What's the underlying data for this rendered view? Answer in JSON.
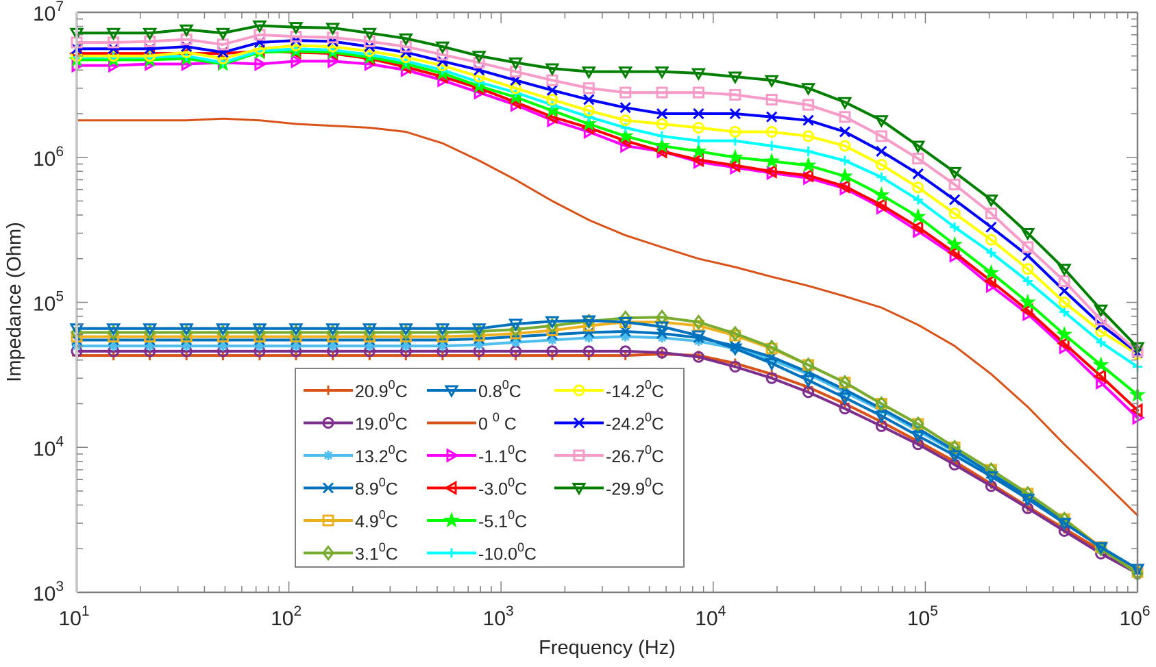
{
  "chart_data": {
    "type": "line",
    "title": "",
    "xlabel": "Frequency (Hz)",
    "ylabel": "Impedance (Ohm)",
    "xscale": "log",
    "yscale": "log",
    "xlim": [
      10,
      1000000
    ],
    "ylim": [
      1000,
      10000000
    ],
    "x_ticks": [
      {
        "base": "10",
        "exp": "1",
        "value": 10
      },
      {
        "base": "10",
        "exp": "2",
        "value": 100
      },
      {
        "base": "10",
        "exp": "3",
        "value": 1000
      },
      {
        "base": "10",
        "exp": "4",
        "value": 10000
      },
      {
        "base": "10",
        "exp": "5",
        "value": 100000
      },
      {
        "base": "10",
        "exp": "6",
        "value": 1000000
      }
    ],
    "y_ticks": [
      {
        "base": "10",
        "exp": "3",
        "value": 1000
      },
      {
        "base": "10",
        "exp": "4",
        "value": 10000
      },
      {
        "base": "10",
        "exp": "5",
        "value": 100000
      },
      {
        "base": "10",
        "exp": "6",
        "value": 1000000
      },
      {
        "base": "10",
        "exp": "7",
        "value": 10000000
      }
    ],
    "grid": false,
    "legend_position": "lower-left-center",
    "legend_columns": 3,
    "x": [
      10,
      14.9,
      22.1,
      32.9,
      48.9,
      72.8,
      108,
      161,
      240,
      356,
      530,
      788,
      1172,
      1743,
      2593,
      3857,
      5736,
      8532,
      12690,
      18874,
      28072,
      41753,
      62102,
      92367,
      137382,
      204336,
      303920,
      452035,
      672336,
      1000000
    ],
    "series": [
      {
        "name": "20.9",
        "unit": "C",
        "color": "#D95319",
        "marker": "plus",
        "values": [
          43000,
          43000,
          43000,
          43000,
          43000,
          43000,
          43000,
          43000,
          43000,
          43000,
          43000,
          43000,
          43000,
          43000,
          43000,
          43000,
          44000,
          43000,
          38000,
          32000,
          26000,
          20000,
          15000,
          11000,
          8000,
          5600,
          3900,
          2750,
          1950,
          1450
        ]
      },
      {
        "name": "19.0",
        "unit": "C",
        "color": "#7E2F8E",
        "marker": "circle",
        "values": [
          46000,
          46000,
          46000,
          46000,
          46000,
          46000,
          46000,
          46000,
          46000,
          46000,
          46000,
          46000,
          46000,
          46000,
          46000,
          46000,
          45000,
          42000,
          36000,
          30000,
          24000,
          18500,
          14000,
          10500,
          7600,
          5400,
          3800,
          2650,
          1850,
          1350
        ]
      },
      {
        "name": "13.2",
        "unit": "C",
        "color": "#4DBEEE",
        "marker": "asterisk",
        "values": [
          50000,
          50000,
          50000,
          50000,
          50000,
          50000,
          50000,
          50000,
          50000,
          50000,
          50000,
          51000,
          53000,
          55000,
          57000,
          58000,
          57000,
          54000,
          48000,
          40000,
          32000,
          24000,
          18000,
          13000,
          9300,
          6500,
          4500,
          3050,
          2050,
          1420
        ]
      },
      {
        "name": "8.9",
        "unit": "C",
        "color": "#0072BD",
        "marker": "x",
        "values": [
          55000,
          55000,
          55000,
          55000,
          55000,
          55000,
          55000,
          55000,
          55000,
          55000,
          55000,
          56000,
          58000,
          60000,
          62000,
          63000,
          61000,
          57000,
          50000,
          42000,
          33000,
          25000,
          18500,
          13500,
          9500,
          6600,
          4600,
          3100,
          2050,
          1400
        ]
      },
      {
        "name": "4.9",
        "unit": "C",
        "color": "#EDB120",
        "marker": "square",
        "values": [
          58000,
          58000,
          58000,
          58000,
          58000,
          58000,
          58000,
          58000,
          58000,
          58000,
          58000,
          59000,
          61000,
          64000,
          69000,
          73000,
          73000,
          69000,
          59000,
          48000,
          37000,
          28000,
          20000,
          14500,
          10000,
          7000,
          4800,
          3200,
          2050,
          1380
        ]
      },
      {
        "name": "3.1",
        "unit": "C",
        "color": "#77AC30",
        "marker": "diamond",
        "values": [
          62000,
          62000,
          62000,
          62000,
          62000,
          62000,
          62000,
          62000,
          62000,
          62000,
          62000,
          63000,
          65000,
          69000,
          74000,
          78000,
          79000,
          73000,
          61000,
          49000,
          37000,
          28000,
          20000,
          14500,
          10000,
          7000,
          4800,
          3200,
          2000,
          1350
        ]
      },
      {
        "name": "0.8",
        "unit": "C",
        "color": "#0072BD",
        "marker": "triangle-down",
        "values": [
          66000,
          66000,
          66000,
          66000,
          66000,
          66000,
          66000,
          66000,
          66000,
          66000,
          66000,
          66000,
          71000,
          74000,
          75000,
          73000,
          68000,
          59000,
          48000,
          38000,
          29000,
          22000,
          16500,
          12000,
          8800,
          6300,
          4400,
          3000,
          2050,
          1450
        ]
      },
      {
        "name": "0 ",
        "unit": " C",
        "color": "#D95319",
        "marker": "none",
        "values": [
          1800000,
          1800000,
          1800000,
          1800000,
          1850000,
          1800000,
          1700000,
          1650000,
          1600000,
          1500000,
          1250000,
          950000,
          700000,
          500000,
          370000,
          290000,
          240000,
          200000,
          175000,
          150000,
          130000,
          110000,
          92000,
          70000,
          50000,
          32000,
          19000,
          10500,
          6000,
          3400
        ]
      },
      {
        "name": "-1.1",
        "unit": "C",
        "color": "#FF00FF",
        "marker": "triangle-right",
        "values": [
          4300000,
          4300000,
          4400000,
          4400000,
          4500000,
          4400000,
          4600000,
          4600000,
          4400000,
          4000000,
          3400000,
          2800000,
          2300000,
          1800000,
          1500000,
          1200000,
          1100000,
          930000,
          850000,
          780000,
          720000,
          610000,
          450000,
          310000,
          210000,
          130000,
          83000,
          49000,
          28000,
          16000
        ]
      },
      {
        "name": "-3.0",
        "unit": "C",
        "color": "#FF0000",
        "marker": "triangle-left",
        "values": [
          5200000,
          5200000,
          5200000,
          5200000,
          5200000,
          5400000,
          5300000,
          5200000,
          4800000,
          4200000,
          3600000,
          3000000,
          2400000,
          1900000,
          1600000,
          1300000,
          1100000,
          960000,
          880000,
          800000,
          750000,
          630000,
          470000,
          330000,
          220000,
          140000,
          88000,
          52000,
          31000,
          18000
        ]
      },
      {
        "name": "-5.1",
        "unit": "C",
        "color": "#00FF00",
        "marker": "pentagram",
        "values": [
          4700000,
          4700000,
          4700000,
          4800000,
          4400000,
          5300000,
          5400000,
          5300000,
          4900000,
          4400000,
          3800000,
          3100000,
          2600000,
          2100000,
          1700000,
          1400000,
          1200000,
          1100000,
          1000000,
          940000,
          880000,
          740000,
          550000,
          390000,
          250000,
          160000,
          100000,
          60000,
          37000,
          23000
        ]
      },
      {
        "name": "-10.0",
        "unit": "C",
        "color": "#00FFFF",
        "marker": "plus",
        "values": [
          4900000,
          4900000,
          4900000,
          5000000,
          4500000,
          5400000,
          5600000,
          5500000,
          5100000,
          4600000,
          4000000,
          3300000,
          2800000,
          2300000,
          1900000,
          1600000,
          1400000,
          1300000,
          1300000,
          1200000,
          1100000,
          950000,
          730000,
          510000,
          330000,
          220000,
          140000,
          86000,
          53000,
          36000
        ]
      },
      {
        "name": "-14.2",
        "unit": "C",
        "color": "#FFFF00",
        "marker": "circle",
        "values": [
          5000000,
          5000000,
          5000000,
          5300000,
          4800000,
          5600000,
          5900000,
          5800000,
          5400000,
          4900000,
          4300000,
          3600000,
          3000000,
          2500000,
          2100000,
          1800000,
          1700000,
          1600000,
          1500000,
          1500000,
          1400000,
          1200000,
          890000,
          620000,
          410000,
          270000,
          170000,
          100000,
          63000,
          44000
        ]
      },
      {
        "name": "-24.2",
        "unit": "C",
        "color": "#0000FF",
        "marker": "x",
        "values": [
          5600000,
          5600000,
          5600000,
          5800000,
          5300000,
          6200000,
          6400000,
          6300000,
          5800000,
          5300000,
          4600000,
          4000000,
          3400000,
          2900000,
          2500000,
          2200000,
          2000000,
          2000000,
          2000000,
          1900000,
          1800000,
          1500000,
          1100000,
          770000,
          510000,
          330000,
          210000,
          120000,
          70000,
          45000
        ]
      },
      {
        "name": "-26.7",
        "unit": "C",
        "color": "#F79BC8",
        "marker": "square",
        "values": [
          6200000,
          6200000,
          6300000,
          6500000,
          6000000,
          7000000,
          6800000,
          6700000,
          6300000,
          5800000,
          5100000,
          4500000,
          3900000,
          3400000,
          3000000,
          2800000,
          2800000,
          2800000,
          2700000,
          2500000,
          2300000,
          1900000,
          1400000,
          980000,
          650000,
          410000,
          240000,
          140000,
          76000,
          46000
        ]
      },
      {
        "name": "-29.9",
        "unit": "C",
        "color": "#007F00",
        "marker": "triangle-down",
        "values": [
          7200000,
          7200000,
          7200000,
          7600000,
          7200000,
          8100000,
          7900000,
          7800000,
          7200000,
          6600000,
          5800000,
          5000000,
          4500000,
          4100000,
          3900000,
          3900000,
          3900000,
          3800000,
          3600000,
          3400000,
          3000000,
          2400000,
          1800000,
          1200000,
          790000,
          510000,
          300000,
          170000,
          89000,
          49000
        ]
      }
    ],
    "legend": [
      {
        "series": 0,
        "label_main": "20.9",
        "label_sup": "0",
        "label_unit": "C"
      },
      {
        "series": 1,
        "label_main": "19.0",
        "label_sup": "0",
        "label_unit": "C"
      },
      {
        "series": 2,
        "label_main": "13.2",
        "label_sup": "0",
        "label_unit": "C"
      },
      {
        "series": 3,
        "label_main": "8.9",
        "label_sup": "0",
        "label_unit": "C"
      },
      {
        "series": 4,
        "label_main": "4.9",
        "label_sup": "0",
        "label_unit": "C"
      },
      {
        "series": 5,
        "label_main": "3.1",
        "label_sup": "0",
        "label_unit": "C"
      },
      {
        "series": 6,
        "label_main": "0.8",
        "label_sup": "0",
        "label_unit": "C"
      },
      {
        "series": 7,
        "label_main": "0 ",
        "label_sup": "0",
        "label_unit": " C"
      },
      {
        "series": 8,
        "label_main": "-1.1",
        "label_sup": "0",
        "label_unit": "C"
      },
      {
        "series": 9,
        "label_main": "-3.0",
        "label_sup": "0",
        "label_unit": "C"
      },
      {
        "series": 10,
        "label_main": "-5.1",
        "label_sup": "0",
        "label_unit": "C"
      },
      {
        "series": 11,
        "label_main": "-10.0",
        "label_sup": "0",
        "label_unit": "C"
      },
      {
        "series": 12,
        "label_main": "-14.2",
        "label_sup": "0",
        "label_unit": "C"
      },
      {
        "series": 13,
        "label_main": "-24.2",
        "label_sup": "0",
        "label_unit": "C"
      },
      {
        "series": 14,
        "label_main": "-26.7",
        "label_sup": "0",
        "label_unit": "C"
      },
      {
        "series": 15,
        "label_main": "-29.9",
        "label_sup": "0",
        "label_unit": "C"
      }
    ],
    "colors": {
      "axis": "#808080",
      "text": "#262626",
      "legend_border": "#808080",
      "background": "#FFFFFF"
    }
  }
}
